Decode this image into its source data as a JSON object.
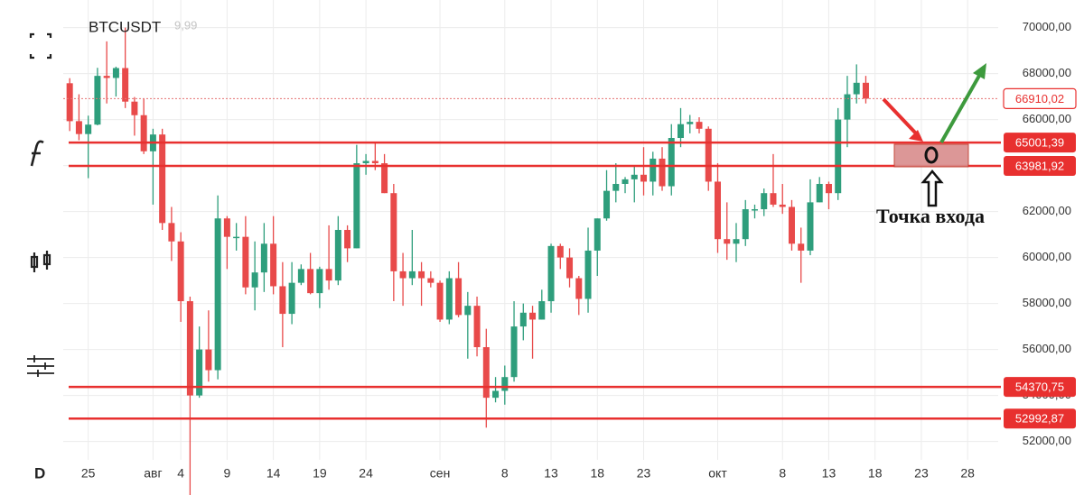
{
  "chart_data": {
    "type": "candlestick",
    "title": "BTCUSDT",
    "subtitle": "9,99",
    "interval": "D",
    "annotation": "Точка входа",
    "up_color": "#2e9e7c",
    "down_color": "#e84a4a",
    "level_color": "#e8302f",
    "grid": true,
    "xlim": [
      -0.7,
      100.3
    ],
    "xticks": [
      {
        "value": 2,
        "label": "25"
      },
      {
        "value": 9,
        "label": "авг"
      },
      {
        "value": 12,
        "label": "4"
      },
      {
        "value": 17,
        "label": "9"
      },
      {
        "value": 22,
        "label": "14"
      },
      {
        "value": 27,
        "label": "19"
      },
      {
        "value": 32,
        "label": "24"
      },
      {
        "value": 40,
        "label": "сен"
      },
      {
        "value": 47,
        "label": "8"
      },
      {
        "value": 52,
        "label": "13"
      },
      {
        "value": 57,
        "label": "18"
      },
      {
        "value": 62,
        "label": "23"
      },
      {
        "value": 70,
        "label": "окт"
      },
      {
        "value": 77,
        "label": "8"
      },
      {
        "value": 82,
        "label": "13"
      },
      {
        "value": 87,
        "label": "18"
      },
      {
        "value": 92,
        "label": "23"
      },
      {
        "value": 97,
        "label": "28"
      }
    ],
    "ylim": [
      51200,
      71200
    ],
    "yticks": [
      {
        "value": 70000,
        "label": "70000,00"
      },
      {
        "value": 68000,
        "label": "68000,00"
      },
      {
        "value": 66000,
        "label": "66000,00"
      },
      {
        "value": 64000,
        "label": "64000,00"
      },
      {
        "value": 62000,
        "label": "62000,00"
      },
      {
        "value": 60000,
        "label": "60000,00"
      },
      {
        "value": 58000,
        "label": "58000,00"
      },
      {
        "value": 56000,
        "label": "56000,00"
      },
      {
        "value": 54000,
        "label": "54000,00"
      },
      {
        "value": 52000,
        "label": "52000,00"
      }
    ],
    "current_price": {
      "value": 66910.02,
      "label": "66910,02"
    },
    "levels": [
      {
        "value": 65001.39,
        "label": "65001,39"
      },
      {
        "value": 63981.92,
        "label": "63981,92"
      },
      {
        "value": 54370.75,
        "label": "54370,75"
      },
      {
        "value": 52992.87,
        "label": "52992,87"
      }
    ],
    "open": [
      67580,
      65930,
      65370,
      65780,
      67900,
      67810,
      68240,
      66780,
      66190,
      64620,
      65350,
      61500,
      60700,
      58100,
      54000,
      56000,
      55100,
      61700,
      60900,
      60900,
      58700,
      59350,
      60600,
      58750,
      57550,
      58900,
      59500,
      58450,
      59500,
      59000,
      61200,
      60400,
      64100,
      64200,
      64100,
      62800,
      59400,
      59100,
      59400,
      59100,
      58900,
      57300,
      59100,
      57500,
      57900,
      56100,
      53900,
      54200,
      54800,
      57000,
      57600,
      57300,
      58100,
      60500,
      60000,
      59100,
      58200,
      60300,
      61700,
      62900,
      63200,
      63400,
      63600,
      63300,
      64300,
      63100,
      65200,
      65800,
      65900,
      65600,
      63300,
      60800,
      60600,
      60800,
      62100,
      62100,
      62800,
      62300,
      62200,
      60600,
      60300,
      62400,
      63200,
      62800,
      66000,
      67100,
      67600
    ],
    "high": [
      67800,
      67100,
      66170,
      68250,
      69400,
      68300,
      70000,
      66980,
      66900,
      65600,
      65600,
      62200,
      61100,
      58300,
      57000,
      57700,
      62700,
      61800,
      61500,
      61800,
      60700,
      61500,
      61800,
      59800,
      59800,
      59700,
      60200,
      59600,
      61400,
      61800,
      61400,
      64900,
      64500,
      65000,
      64500,
      63200,
      60200,
      61200,
      59800,
      59400,
      59000,
      59400,
      59800,
      58500,
      58300,
      56900,
      54800,
      55300,
      58100,
      58000,
      57900,
      58600,
      60600,
      60600,
      60400,
      59200,
      61300,
      61700,
      63800,
      64100,
      63500,
      64000,
      64800,
      64600,
      64800,
      65800,
      66500,
      66200,
      66100,
      65700,
      64100,
      62400,
      61500,
      62500,
      62300,
      63000,
      64500,
      63200,
      62500,
      61300,
      63400,
      63500,
      63300,
      66500,
      67900,
      68400,
      67900
    ],
    "low": [
      65500,
      65100,
      63450,
      65750,
      66700,
      67000,
      66500,
      65300,
      64500,
      62300,
      61200,
      59850,
      57200,
      49500,
      53900,
      54600,
      54700,
      59500,
      60300,
      58400,
      57700,
      58500,
      58400,
      56100,
      57100,
      58800,
      58400,
      57800,
      58600,
      58800,
      59800,
      60400,
      63600,
      63800,
      62800,
      58100,
      57900,
      58800,
      57900,
      58700,
      57200,
      57100,
      57400,
      55600,
      55700,
      52600,
      53700,
      53600,
      54600,
      56400,
      55600,
      57300,
      57600,
      59500,
      58700,
      57500,
      57600,
      59200,
      61600,
      62400,
      62800,
      62400,
      62700,
      62700,
      62900,
      62700,
      64800,
      65400,
      65400,
      62900,
      60200,
      59900,
      59800,
      60500,
      61700,
      61800,
      62200,
      61900,
      60300,
      58900,
      60100,
      62400,
      62100,
      62500,
      64800,
      66700,
      66700
    ],
    "close": [
      65930,
      65370,
      65780,
      67900,
      67810,
      68240,
      66780,
      66190,
      64620,
      65350,
      61500,
      60700,
      58100,
      54000,
      56000,
      55100,
      61700,
      60900,
      60900,
      58700,
      59350,
      60600,
      58750,
      57550,
      58900,
      59500,
      58450,
      59500,
      59000,
      61200,
      60400,
      64100,
      64200,
      64100,
      62800,
      59400,
      59100,
      59400,
      59100,
      58900,
      57300,
      59100,
      57500,
      57900,
      56100,
      53900,
      54200,
      54800,
      57000,
      57600,
      57300,
      58100,
      60500,
      60000,
      59100,
      58200,
      60300,
      61700,
      62900,
      63200,
      63400,
      63600,
      63300,
      64300,
      63100,
      65200,
      65800,
      65900,
      65600,
      63300,
      60800,
      60600,
      60800,
      62100,
      62100,
      62800,
      62300,
      62200,
      60600,
      60300,
      62400,
      63200,
      62800,
      66000,
      67100,
      67600,
      66910
    ]
  }
}
